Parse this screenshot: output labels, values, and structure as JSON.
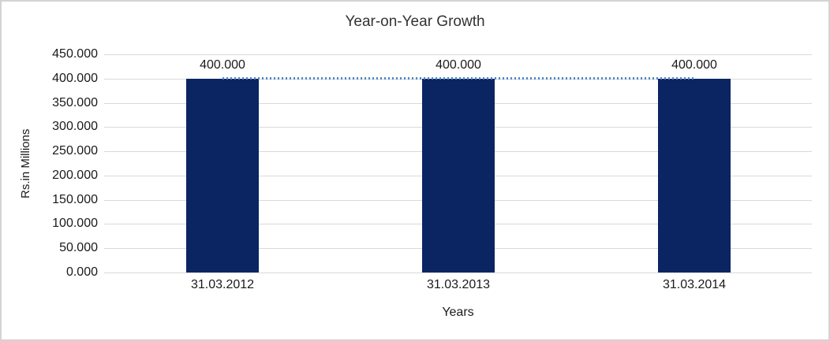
{
  "frame": {
    "border_color": "#d3d3d3",
    "background": "#ffffff"
  },
  "chart_data": {
    "type": "bar",
    "title": "Year-on-Year Growth",
    "categories": [
      "31.03.2012",
      "31.03.2013",
      "31.03.2014"
    ],
    "series": [
      {
        "name": "Amount",
        "type": "bar",
        "values": [
          400,
          400,
          400
        ],
        "color": "#0b2563"
      },
      {
        "name": "Trend",
        "type": "line",
        "line_style": "dotted",
        "values": [
          400,
          400,
          400
        ],
        "color": "#4f86c6"
      }
    ],
    "data_labels": [
      "400.000",
      "400.000",
      "400.000"
    ],
    "xlabel": "Years",
    "ylabel": "Rs.in Millions",
    "ylim": [
      0,
      450
    ],
    "ytick_step": 50,
    "yticks": [
      "450.000",
      "400.000",
      "350.000",
      "300.000",
      "250.000",
      "200.000",
      "150.000",
      "100.000",
      "50.000",
      "0.000"
    ],
    "grid": true,
    "gridline_color": "#d9d9d9",
    "legend": "none",
    "text_color": "#1a1a1a",
    "title_color": "#333333"
  }
}
